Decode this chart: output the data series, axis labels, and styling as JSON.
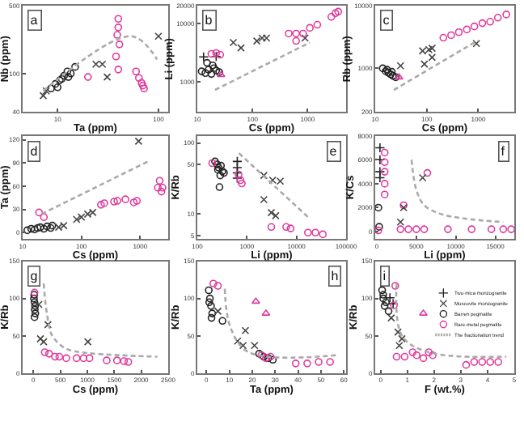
{
  "chart_data": [
    {
      "type": "scatter",
      "annotations": [
        "a"
      ],
      "xlabel": "Ta (ppm)",
      "ylabel": "Nb (ppm)",
      "log": "xy",
      "xlim": [
        4.5,
        125
      ],
      "ylim": [
        40,
        500
      ],
      "xticks": [
        10,
        100
      ],
      "yticks": [
        40,
        100,
        500
      ],
      "series": [
        {
          "color": "#222222",
          "marker": "circle",
          "x": [
            8.6,
            9.5,
            10.5,
            11.6,
            12.5,
            13.5,
            14.9,
            10,
            11,
            12.8
          ],
          "values": [
            70,
            78,
            85,
            95,
            105,
            100,
            117,
            72,
            88,
            92
          ]
        },
        {
          "color": "#444444",
          "marker": "x",
          "x": [
            7.7,
            7.2,
            24,
            27.8,
            31,
            100
          ],
          "values": [
            66,
            59,
            125,
            125,
            92,
            243
          ]
        },
        {
          "color": "#e0399b",
          "marker": "circle",
          "x": [
            40,
            40,
            39,
            41,
            38,
            40,
            20,
            60,
            64,
            68,
            72,
            70
          ],
          "values": [
            368,
            300,
            251,
            200,
            150,
            110,
            92,
            105,
            90,
            80,
            70,
            75
          ]
        },
        {
          "type": "line",
          "color": "#aaaaaa",
          "line_style": "dashed",
          "marker": "none",
          "x": [
            7.2,
            54,
            97
          ],
          "values": [
            66,
            243,
            140
          ]
        }
      ]
    },
    {
      "type": "scatter",
      "annotations": [
        "b"
      ],
      "xlabel": "Cs (ppm)",
      "ylabel": "Li (ppm)",
      "log": "xy",
      "xlim": [
        10,
        5000
      ],
      "ylim": [
        300,
        20000
      ],
      "xticks": [
        10,
        100,
        1000
      ],
      "yticks": [
        1000,
        10000,
        20000
      ],
      "series": [
        {
          "color": "#222222",
          "marker": "circle",
          "x": [
            12,
            14,
            16,
            18,
            20,
            22,
            25,
            15,
            19
          ],
          "values": [
            1500,
            1400,
            1600,
            1350,
            1700,
            1550,
            1450,
            2100,
            1900
          ]
        },
        {
          "color": "#222222",
          "marker": "plus",
          "x": [
            13,
            22
          ],
          "values": [
            2660,
            2700
          ]
        },
        {
          "color": "#444444",
          "marker": "x",
          "x": [
            45,
            62,
            120,
            150,
            180,
            900
          ],
          "values": [
            4700,
            3800,
            5000,
            5600,
            5600,
            5600
          ]
        },
        {
          "color": "#e0399b",
          "marker": "circle",
          "x": [
            18,
            22,
            26,
            455,
            620,
            830,
            1100,
            1500,
            2700,
            3200,
            3600,
            620
          ],
          "values": [
            3000,
            3100,
            2900,
            6700,
            6700,
            6700,
            8400,
            9500,
            13000,
            15000,
            16000,
            5000
          ]
        },
        {
          "color": "#e0399b",
          "marker": "triangle",
          "x": [
            27
          ],
          "values": [
            1300
          ]
        },
        {
          "type": "line",
          "color": "#aaaaaa",
          "line_style": "dashed",
          "marker": "none",
          "x": [
            21,
            1100
          ],
          "values": [
            720,
            4700
          ]
        }
      ]
    },
    {
      "type": "scatter",
      "annotations": [
        "c"
      ],
      "xlabel": "Cs (ppm)",
      "ylabel": "Rb (ppm)",
      "log": "xy",
      "xlim": [
        10,
        5000
      ],
      "ylim": [
        200,
        10000
      ],
      "xticks": [
        10,
        100,
        1000
      ],
      "yticks": [
        200,
        1000,
        10000
      ],
      "series": [
        {
          "color": "#222222",
          "marker": "circle",
          "x": [
            14,
            16,
            18,
            20,
            22,
            25,
            17,
            21
          ],
          "values": [
            1000,
            900,
            850,
            800,
            760,
            720,
            950,
            880
          ]
        },
        {
          "color": "#444444",
          "marker": "x",
          "x": [
            31,
            83,
            110,
            127,
            90,
            127,
            920
          ],
          "values": [
            1100,
            1900,
            2000,
            2100,
            1170,
            1500,
            2500
          ]
        },
        {
          "color": "#e0399b",
          "marker": "circle",
          "x": [
            210,
            297,
            420,
            600,
            840,
            1200,
            1700,
            2400,
            3500
          ],
          "values": [
            3100,
            3400,
            3800,
            4200,
            4700,
            5300,
            5600,
            6500,
            7300
          ]
        },
        {
          "color": "#e0399b",
          "marker": "triangle",
          "x": [
            29
          ],
          "values": [
            720
          ]
        },
        {
          "type": "line",
          "color": "#aaaaaa",
          "line_style": "dashed",
          "marker": "none",
          "x": [
            23,
            980
          ],
          "values": [
            450,
            2800
          ]
        }
      ]
    },
    {
      "type": "scatter",
      "annotations": [
        "d"
      ],
      "xlabel": "Cs (ppm)",
      "ylabel": "Ta (ppm)",
      "log": "x",
      "xlim": [
        10,
        3000
      ],
      "ylim": [
        -8,
        125
      ],
      "xticks": [
        10,
        100,
        1000
      ],
      "yticks": [
        0,
        30,
        60,
        90,
        120
      ],
      "series": [
        {
          "color": "#222222",
          "marker": "circle",
          "x": [
            12,
            14,
            16,
            18,
            20,
            23,
            26,
            30,
            32
          ],
          "values": [
            3,
            5,
            4,
            6,
            7,
            5,
            8,
            6,
            9
          ]
        },
        {
          "color": "#444444",
          "marker": "x",
          "x": [
            41,
            50,
            83,
            100,
            128,
            156,
            940
          ],
          "values": [
            7,
            9,
            17,
            20,
            24,
            26,
            118
          ]
        },
        {
          "color": "#e0399b",
          "marker": "circle",
          "x": [
            19,
            23,
            215,
            245,
            360,
            410,
            560,
            780,
            880,
            2000,
            2150,
            2300,
            2400
          ],
          "values": [
            26,
            20,
            36,
            38,
            40,
            41,
            43,
            39,
            41,
            58,
            67,
            53,
            58
          ]
        },
        {
          "type": "line",
          "color": "#aaaaaa",
          "line_style": "dashed",
          "marker": "none",
          "x": [
            21,
            1460
          ],
          "values": [
            24,
            93
          ]
        }
      ]
    },
    {
      "type": "scatter",
      "annotations": [
        "e"
      ],
      "xlabel": "Li (ppm)",
      "ylabel": "K/Rb",
      "log": "xy",
      "xlim": [
        100,
        100000
      ],
      "ylim": [
        4.5,
        126
      ],
      "xticks": [
        100,
        1000,
        10000,
        100000
      ],
      "yticks": [
        5,
        10,
        50,
        100
      ],
      "series": [
        {
          "color": "#222222",
          "marker": "circle",
          "x": [
            228,
            250,
            270,
            300,
            320,
            345,
            260,
            290,
            280
          ],
          "values": [
            55,
            50,
            45,
            48,
            40,
            38,
            42,
            35,
            24
          ]
        },
        {
          "color": "#222222",
          "marker": "plus",
          "x": [
            640,
            640,
            640,
            640
          ],
          "values": [
            55,
            45,
            38,
            32
          ]
        },
        {
          "color": "#444444",
          "marker": "x",
          "x": [
            2200,
            3300,
            4700,
            2200,
            3100,
            3800
          ],
          "values": [
            35,
            30,
            29,
            16,
            10.5,
            9.5
          ]
        },
        {
          "color": "#e0399b",
          "marker": "circle",
          "x": [
            200,
            680,
            740,
            790,
            3100,
            6200,
            7600,
            17000,
            24000,
            34000
          ],
          "values": [
            52,
            36,
            30,
            27,
            6.6,
            6.6,
            6.3,
            5.5,
            5.5,
            5.2
          ]
        },
        {
          "type": "line",
          "color": "#aaaaaa",
          "line_style": "dashed",
          "marker": "none",
          "x": [
            690,
            17000
          ],
          "values": [
            72,
            9.1
          ]
        }
      ]
    },
    {
      "type": "scatter",
      "annotations": [
        "f"
      ],
      "xlabel": "Li (ppm)",
      "ylabel": "K/Cs",
      "xlim": [
        -200,
        17400
      ],
      "ylim": [
        -600,
        8000
      ],
      "xticks": [
        0,
        5000,
        10000,
        15000
      ],
      "yticks": [
        0,
        2000,
        4000,
        6000,
        8000
      ],
      "series": [
        {
          "color": "#222222",
          "marker": "plus",
          "x": [
            400,
            400,
            400,
            400
          ],
          "values": [
            7000,
            6000,
            5000,
            4500
          ]
        },
        {
          "color": "#222222",
          "marker": "circle",
          "x": [
            200,
            300
          ],
          "values": [
            2000,
            400
          ]
        },
        {
          "color": "#e0399b",
          "marker": "circle",
          "x": [
            1000,
            1000,
            1000,
            1000,
            1000,
            200,
            3000,
            4000,
            5000,
            6000,
            9000,
            12000,
            14500,
            16000,
            17000,
            6400,
            3400
          ],
          "values": [
            6600,
            5800,
            5000,
            4000,
            3100,
            100,
            200,
            200,
            200,
            200,
            200,
            200,
            200,
            200,
            200,
            4900,
            2200
          ]
        },
        {
          "color": "#444444",
          "marker": "x",
          "x": [
            3400,
            3000,
            5800
          ],
          "values": [
            2000,
            800,
            4500
          ]
        },
        {
          "type": "line",
          "color": "#aaaaaa",
          "line_style": "dashed",
          "marker": "none",
          "x": [
            4400,
            5000,
            6000,
            8000,
            11000,
            16000
          ],
          "values": [
            6000,
            3500,
            2200,
            1500,
            1100,
            800
          ]
        }
      ]
    },
    {
      "type": "scatter",
      "annotations": [
        "g"
      ],
      "xlabel": "Cs (ppm)",
      "ylabel": "K/Rb",
      "xlim": [
        -200,
        2500
      ],
      "ylim": [
        0,
        150
      ],
      "xticks": [
        0,
        500,
        1000,
        1500,
        2000,
        2500
      ],
      "yticks": [
        0,
        50,
        100,
        150
      ],
      "series": [
        {
          "color": "#222222",
          "marker": "circle",
          "x": [
            10,
            20,
            30,
            15,
            25,
            35,
            20
          ],
          "values": [
            100,
            95,
            90,
            105,
            85,
            80,
            75
          ]
        },
        {
          "color": "#444444",
          "marker": "x",
          "x": [
            130,
            190,
            270,
            100,
            1010
          ],
          "values": [
            46,
            42,
            65,
            92,
            42
          ]
        },
        {
          "color": "#e0399b",
          "marker": "circle",
          "x": [
            20,
            210,
            290,
            400,
            480,
            610,
            800,
            930,
            1040,
            1360,
            1550,
            1680,
            1760
          ],
          "values": [
            108,
            28,
            26,
            22,
            22,
            20,
            20,
            20,
            20,
            17,
            17,
            16,
            15
          ]
        },
        {
          "type": "line",
          "color": "#aaaaaa",
          "line_style": "dashed",
          "marker": "none",
          "x": [
            190,
            250,
            350,
            600,
            1000,
            1600,
            2300
          ],
          "values": [
            120,
            80,
            50,
            33,
            27,
            24,
            22
          ]
        }
      ]
    },
    {
      "type": "scatter",
      "annotations": [
        "h"
      ],
      "xlabel": "Ta (ppm)",
      "ylabel": "K/Rb",
      "xlim": [
        -4,
        61
      ],
      "ylim": [
        0,
        150
      ],
      "xticks": [
        0,
        10,
        20,
        30,
        40,
        50,
        60
      ],
      "yticks": [
        0,
        50,
        100,
        150
      ],
      "series": [
        {
          "color": "#222222",
          "marker": "circle",
          "x": [
            1,
            1.5,
            2,
            2.5,
            1.2,
            2.2,
            7,
            23,
            25,
            27,
            29
          ],
          "values": [
            111,
            100,
            90,
            80,
            95,
            74,
            70,
            26,
            22,
            20,
            18
          ]
        },
        {
          "color": "#444444",
          "marker": "x",
          "x": [
            5,
            13.6,
            16,
            17,
            21
          ],
          "values": [
            83,
            43,
            37,
            57,
            37
          ]
        },
        {
          "color": "#e0399b",
          "marker": "circle",
          "x": [
            3,
            5,
            24,
            26,
            28,
            39,
            44,
            49,
            54
          ],
          "values": [
            120,
            117,
            24,
            20,
            22,
            13,
            13,
            15,
            15
          ]
        },
        {
          "color": "#e0399b",
          "marker": "triangle",
          "x": [
            21.6,
            26
          ],
          "values": [
            96,
            80
          ]
        },
        {
          "type": "line",
          "color": "#aaaaaa",
          "line_style": "dashed",
          "marker": "none",
          "x": [
            8,
            10.5,
            18.5,
            57
          ],
          "values": [
            113,
            61,
            28,
            24
          ]
        }
      ]
    },
    {
      "type": "scatter",
      "annotations": [
        "i"
      ],
      "xlabel": "F (wt.%)",
      "ylabel": "K/Rb",
      "xlim": [
        -0.2,
        5
      ],
      "ylim": [
        0,
        150
      ],
      "xticks": [
        0,
        1,
        2,
        3,
        4,
        5
      ],
      "yticks": [
        0,
        50,
        100,
        150
      ],
      "legend": "top right",
      "series": [
        {
          "name": "Two-mica monzogranite",
          "color": "#222222",
          "marker": "plus",
          "x": [
            0.47,
            0.35
          ],
          "values": [
            93,
            101
          ]
        },
        {
          "name": "Muscovite monzogranite",
          "color": "#444444",
          "marker": "x",
          "x": [
            0.7,
            0.8,
            0.65,
            0.4
          ],
          "values": [
            37,
            46,
            55,
            74
          ]
        },
        {
          "name": "Barren pegmatite",
          "color": "#222222",
          "marker": "circle",
          "x": [
            0.06,
            0.1,
            0.15,
            0.2,
            0.3,
            0.1
          ],
          "values": [
            111,
            100,
            90,
            95,
            83,
            105
          ]
        },
        {
          "name": "Rare-metal pegmatite",
          "color": "#e0399b",
          "marker": "circle",
          "x": [
            0.55,
            0.5,
            0.6,
            0.9,
            1.2,
            1.35,
            1.6,
            1.8,
            1.95,
            3.2,
            3.5,
            3.8,
            4.1,
            4.4
          ],
          "values": [
            117,
            91,
            22,
            22,
            28,
            24,
            20,
            28,
            24,
            11,
            15,
            15,
            15,
            15
          ]
        },
        {
          "color": "#e0399b",
          "marker": "triangle",
          "x": [
            1.6
          ],
          "values": [
            80
          ]
        },
        {
          "name": "The fractionation trend",
          "type": "line",
          "color": "#aaaaaa",
          "line_style": "dashed",
          "marker": "none",
          "x": [
            0.6,
            0.8,
            1.8,
            4.7
          ],
          "values": [
            120,
            50,
            28,
            22
          ]
        }
      ]
    }
  ]
}
